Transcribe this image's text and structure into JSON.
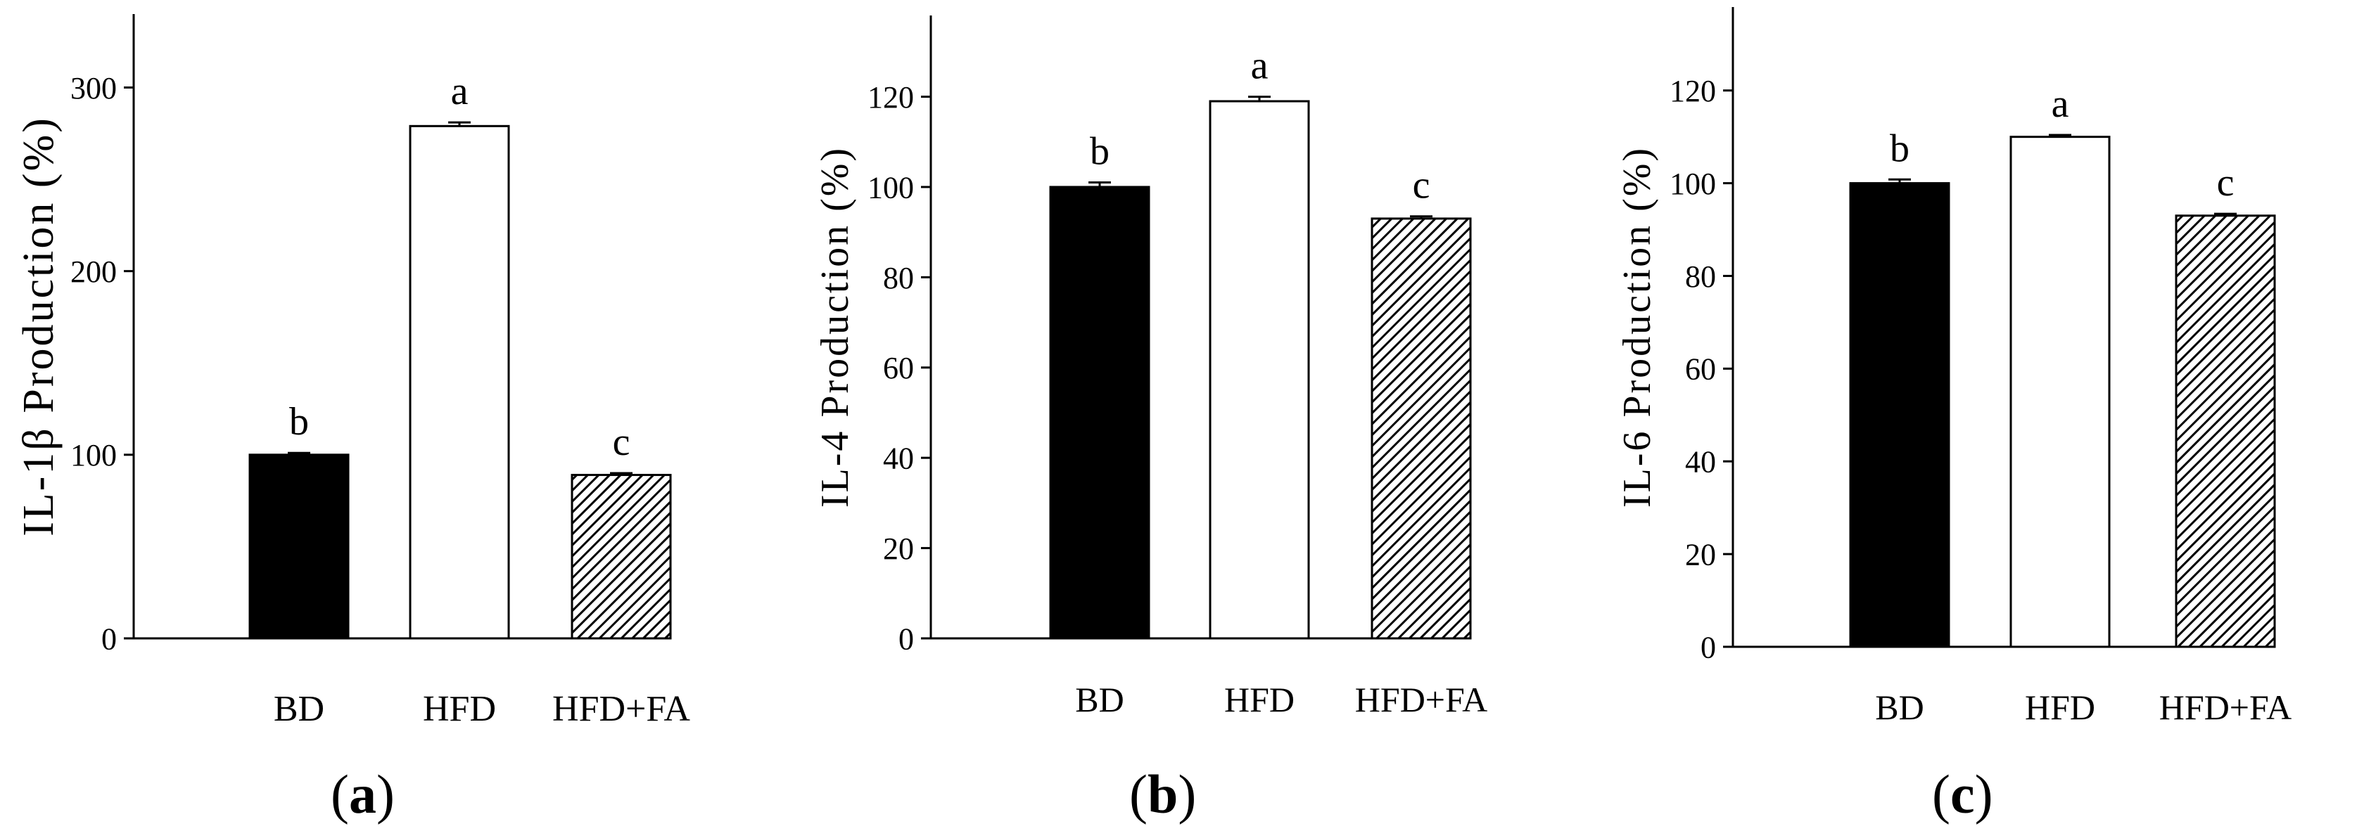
{
  "chart_data": [
    {
      "type": "bar",
      "panel": "(a)",
      "panel_letter": "a",
      "ylabel": "IL-1β Production (%)",
      "ylim": [
        0,
        340
      ],
      "yticks": [
        0,
        100,
        200,
        300
      ],
      "categories": [
        "BD",
        "HFD",
        "HFD+FA"
      ],
      "values": [
        100,
        279,
        89
      ],
      "errors": [
        1,
        2,
        1
      ],
      "significance": [
        "b",
        "a",
        "c"
      ],
      "fills": [
        "solid-black",
        "white",
        "hatched"
      ]
    },
    {
      "type": "bar",
      "panel": "(b)",
      "panel_letter": "b",
      "ylabel": "IL-4 Production (%)",
      "ylim": [
        0,
        138
      ],
      "yticks": [
        0,
        20,
        40,
        60,
        80,
        100,
        120
      ],
      "categories": [
        "BD",
        "HFD",
        "HFD+FA"
      ],
      "values": [
        100,
        119,
        93
      ],
      "errors": [
        1,
        1,
        0.5
      ],
      "significance": [
        "b",
        "a",
        "c"
      ],
      "fills": [
        "solid-black",
        "white",
        "hatched"
      ]
    },
    {
      "type": "bar",
      "panel": "(c)",
      "panel_letter": "c",
      "ylabel": "IL-6 Production (%)",
      "ylim": [
        0,
        138
      ],
      "yticks": [
        0,
        20,
        40,
        60,
        80,
        100,
        120
      ],
      "categories": [
        "BD",
        "HFD",
        "HFD+FA"
      ],
      "values": [
        100,
        110,
        93
      ],
      "errors": [
        0.8,
        0.4,
        0.4
      ],
      "significance": [
        "b",
        "a",
        "c"
      ],
      "fills": [
        "solid-black",
        "white",
        "hatched"
      ]
    }
  ],
  "colors": {
    "bar_dark": "#000000",
    "bar_light": "#ffffff",
    "stroke": "#000000"
  }
}
